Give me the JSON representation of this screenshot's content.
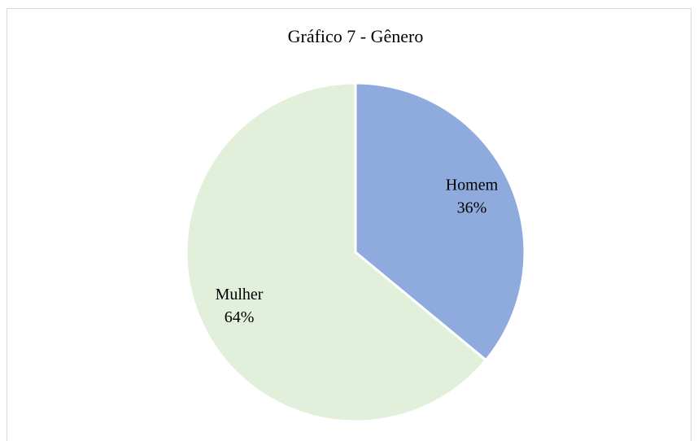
{
  "chart_data": {
    "type": "pie",
    "title": "Gráfico 7 - Gênero",
    "categories": [
      "Homem",
      "Mulher"
    ],
    "values": [
      36,
      64
    ],
    "value_labels": [
      "36%",
      "64%"
    ],
    "colors": [
      "#8faadc",
      "#e2efda"
    ]
  }
}
